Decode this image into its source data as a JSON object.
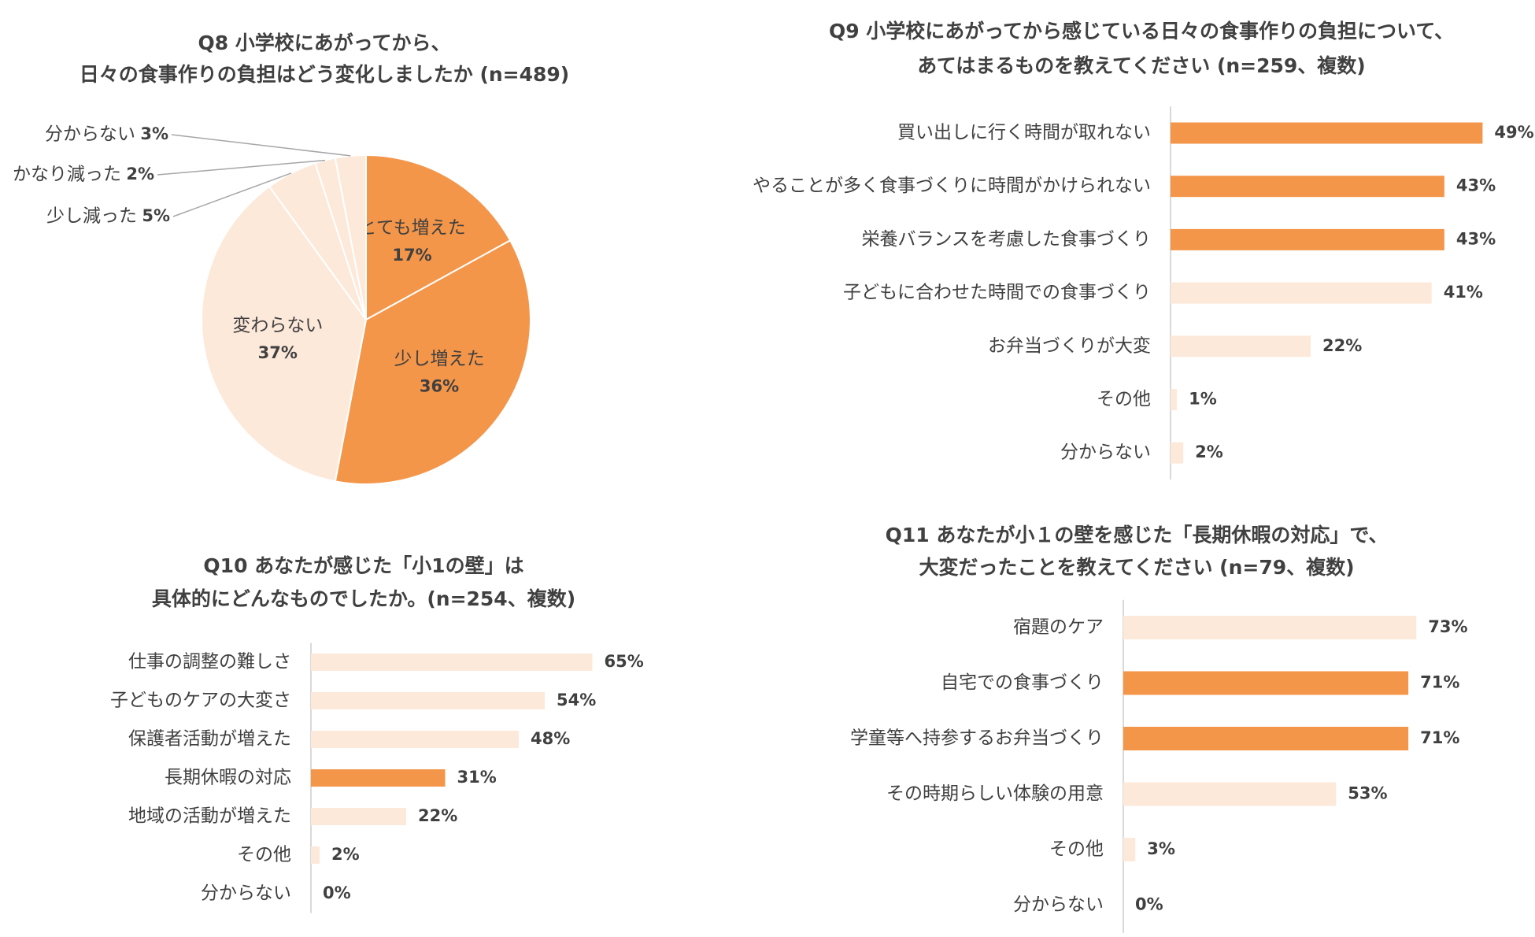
{
  "chart_data": [
    {
      "type": "pie",
      "title": [
        "Q8 小学校にあがってから、",
        "日々の食事作りの負担はどう変化しましたか (n=489)"
      ],
      "categories": [
        "とても増えた",
        "少し増えた",
        "変わらない",
        "少し減った",
        "かなり減った",
        "分からない"
      ],
      "values": [
        17,
        36,
        37,
        5,
        2,
        3
      ],
      "value_labels": [
        "17%",
        "36%",
        "37%",
        "5%",
        "2%",
        "3%"
      ],
      "colors": [
        "#f4964a",
        "#f4964a",
        "#fde9da",
        "#fde9da",
        "#fde9da",
        "#fde9da"
      ]
    },
    {
      "type": "hbar",
      "title": [
        "Q9 小学校にあがってから感じている日々の食事作りの負担について、",
        "あてはまるものを教えてください (n=259、複数)"
      ],
      "categories": [
        "買い出しに行く時間が取れない",
        "やることが多く食事づくりに時間がかけられない",
        "栄養バランスを考慮した食事づくり",
        "子どもに合わせた時間での食事づくり",
        "お弁当づくりが大変",
        "その他",
        "分からない"
      ],
      "values": [
        49,
        43,
        43,
        41,
        22,
        1,
        2
      ],
      "value_labels": [
        "49%",
        "43%",
        "43%",
        "41%",
        "22%",
        "1%",
        "2%"
      ],
      "colors": [
        "#f4964a",
        "#f4964a",
        "#f4964a",
        "#fde9da",
        "#fde9da",
        "#fde9da",
        "#fde9da"
      ]
    },
    {
      "type": "hbar",
      "title": [
        "Q10 あなたが感じた「小1の壁」は",
        "具体的にどんなものでしたか。(n=254、複数)"
      ],
      "categories": [
        "仕事の調整の難しさ",
        "子どものケアの大変さ",
        "保護者活動が増えた",
        "長期休暇の対応",
        "地域の活動が増えた",
        "その他",
        "分からない"
      ],
      "values": [
        65,
        54,
        48,
        31,
        22,
        2,
        0
      ],
      "value_labels": [
        "65%",
        "54%",
        "48%",
        "31%",
        "22%",
        "2%",
        "0%"
      ],
      "colors": [
        "#fde9da",
        "#fde9da",
        "#fde9da",
        "#f4964a",
        "#fde9da",
        "#fde9da",
        "#fde9da"
      ]
    },
    {
      "type": "hbar",
      "title": [
        "Q11 あなたが小１の壁を感じた「長期休暇の対応」で、",
        "大変だったことを教えてください (n=79、複数)"
      ],
      "categories": [
        "宿題のケア",
        "自宅での食事づくり",
        "学童等へ持参するお弁当づくり",
        "その時期らしい体験の用意",
        "その他",
        "分からない"
      ],
      "values": [
        73,
        71,
        71,
        53,
        3,
        0
      ],
      "value_labels": [
        "73%",
        "71%",
        "71%",
        "53%",
        "3%",
        "0%"
      ],
      "colors": [
        "#fde9da",
        "#f4964a",
        "#f4964a",
        "#fde9da",
        "#fde9da",
        "#fde9da"
      ]
    }
  ]
}
